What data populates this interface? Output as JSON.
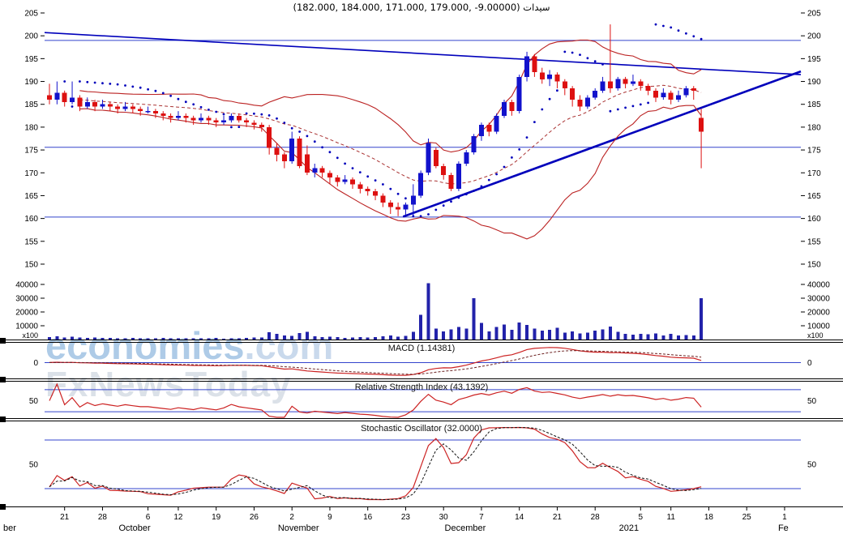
{
  "watermark": {
    "brand": "economies",
    "domain": ".com",
    "subtitle": "FxNewsToday"
  },
  "colors": {
    "up": "#1212cc",
    "down": "#dd1010",
    "band": "#bb2222",
    "band_mid": "#aa3333",
    "trend": "#0000bb",
    "level": "#3344cc",
    "volume": "#2222aa",
    "macd": "#cc2222",
    "signal": "#6b2020",
    "rsi": "#cc2222",
    "stoch_k": "#cc2222",
    "stoch_d": "#111111",
    "axis_text": "#000000",
    "separator": "#000000",
    "watermark_brand": "#aecbe7",
    "watermark_sub": "#dbe1e8"
  },
  "chart_data": {
    "type": "candlestick",
    "symbol": "سيدات",
    "title": "سيدات ‎(182.000, 184.000, 171.000, 179.000, -9.00000)",
    "last_ohlc": {
      "open": 182.0,
      "high": 184.0,
      "low": 171.0,
      "close": 179.0,
      "change": -9.0
    },
    "price_axis": {
      "ticks": [
        205,
        200,
        195,
        190,
        185,
        180,
        175,
        170,
        165,
        160,
        155,
        150
      ]
    },
    "volume_axis": {
      "ticks": [
        40000,
        30000,
        20000,
        10000
      ],
      "multiplier": "x100"
    },
    "levels": [
      199.0,
      175.6,
      160.3
    ],
    "trendlines": [
      {
        "name": "descending-resistance-trendline",
        "x1_frac": 0.0,
        "price1": 200.7,
        "x2_frac": 1.0,
        "price2": 191.5,
        "width": 1.6
      },
      {
        "name": "ascending-support-trendline",
        "x1_frac": 0.474,
        "price1": 160.4,
        "x2_frac": 1.0,
        "price2": 192.2,
        "width": 2.6
      }
    ],
    "indicator_panels": [
      {
        "name": "macd",
        "title": "MACD (1.14381)",
        "zero_label": "0"
      },
      {
        "name": "rsi",
        "title": "Relative Strength Index (43.1392)",
        "mid_label": "50",
        "lines": [
          70,
          30
        ]
      },
      {
        "name": "stoch",
        "title": "Stochastic Oscillator (32.0000)",
        "mid_label": "50",
        "lines": [
          80,
          20
        ]
      }
    ],
    "x_ticks": [
      {
        "i": 2,
        "label": "21"
      },
      {
        "i": 7,
        "label": "28"
      },
      {
        "i": 13,
        "label": "6"
      },
      {
        "i": 17,
        "label": "12"
      },
      {
        "i": 22,
        "label": "19"
      },
      {
        "i": 27,
        "label": "26"
      },
      {
        "i": 32,
        "label": "2"
      },
      {
        "i": 37,
        "label": "9"
      },
      {
        "i": 42,
        "label": "16"
      },
      {
        "i": 47,
        "label": "23"
      },
      {
        "i": 52,
        "label": "30"
      },
      {
        "i": 57,
        "label": "7"
      },
      {
        "i": 62,
        "label": "14"
      },
      {
        "i": 67,
        "label": "21"
      },
      {
        "i": 72,
        "label": "28"
      },
      {
        "i": 78,
        "label": "5"
      },
      {
        "i": 82,
        "label": "11"
      },
      {
        "i": 87,
        "label": "18"
      },
      {
        "i": 92,
        "label": "25"
      },
      {
        "i": 97,
        "label": "1"
      }
    ],
    "month_labels": [
      {
        "i": -5.7,
        "label": "ber"
      },
      {
        "i": 10,
        "label": "October"
      },
      {
        "i": 31,
        "label": "November"
      },
      {
        "i": 53,
        "label": "December"
      },
      {
        "i": 76,
        "label": "2021"
      },
      {
        "i": 97,
        "label": "Fe"
      }
    ],
    "candles": [
      [
        "2020-09-17",
        187.0,
        189.5,
        185.0,
        186.0,
        1800
      ],
      [
        "2020-09-20",
        186.0,
        190.0,
        185.0,
        187.5,
        2500
      ],
      [
        "2020-09-21",
        187.5,
        188.0,
        184.5,
        185.5,
        1600
      ],
      [
        "2020-09-22",
        185.5,
        190.0,
        185.0,
        186.5,
        2100
      ],
      [
        "2020-09-23",
        186.5,
        187.0,
        183.5,
        184.5,
        1400
      ],
      [
        "2020-09-24",
        184.5,
        186.5,
        184.0,
        185.5,
        1200
      ],
      [
        "2020-09-27",
        185.5,
        186.0,
        183.5,
        184.5,
        1500
      ],
      [
        "2020-09-28",
        184.5,
        186.0,
        184.0,
        185.0,
        1300
      ],
      [
        "2020-09-29",
        185.0,
        185.5,
        183.5,
        184.5,
        1100
      ],
      [
        "2020-09-30",
        184.5,
        185.0,
        183.0,
        184.0,
        1000
      ],
      [
        "2020-10-01",
        184.0,
        185.5,
        183.5,
        184.5,
        900
      ],
      [
        "2020-10-04",
        184.5,
        185.0,
        183.0,
        184.0,
        1100
      ],
      [
        "2020-10-05",
        184.0,
        184.5,
        182.5,
        183.5,
        1000
      ],
      [
        "2020-10-06",
        183.5,
        184.5,
        183.0,
        183.5,
        800
      ],
      [
        "2020-10-07",
        183.5,
        184.0,
        182.0,
        183.0,
        950
      ],
      [
        "2020-10-08",
        183.0,
        183.5,
        181.5,
        182.5,
        1200
      ],
      [
        "2020-10-11",
        182.5,
        183.0,
        181.0,
        182.0,
        1000
      ],
      [
        "2020-10-12",
        182.0,
        183.5,
        181.5,
        182.5,
        900
      ],
      [
        "2020-10-13",
        182.5,
        183.0,
        181.0,
        182.0,
        850
      ],
      [
        "2020-10-14",
        182.0,
        182.5,
        180.5,
        181.5,
        900
      ],
      [
        "2020-10-15",
        181.5,
        183.0,
        181.0,
        182.0,
        800
      ],
      [
        "2020-10-18",
        182.0,
        182.5,
        180.5,
        181.5,
        1000
      ],
      [
        "2020-10-19",
        181.5,
        182.0,
        180.0,
        181.0,
        1100
      ],
      [
        "2020-10-20",
        181.0,
        182.5,
        180.5,
        181.5,
        700
      ],
      [
        "2020-10-21",
        181.5,
        183.0,
        181.0,
        182.5,
        900
      ],
      [
        "2020-10-22",
        182.5,
        183.0,
        181.0,
        181.5,
        800
      ],
      [
        "2020-10-25",
        181.5,
        182.0,
        180.0,
        181.0,
        1200
      ],
      [
        "2020-10-26",
        181.0,
        181.5,
        179.5,
        180.5,
        1400
      ],
      [
        "2020-10-27",
        180.5,
        181.0,
        179.0,
        180.0,
        1600
      ],
      [
        "2020-10-28",
        180.0,
        180.5,
        174.0,
        175.5,
        5200
      ],
      [
        "2020-10-29",
        175.5,
        176.5,
        172.5,
        174.0,
        4100
      ],
      [
        "2020-11-01",
        174.0,
        174.5,
        171.0,
        172.5,
        3000
      ],
      [
        "2020-11-02",
        172.5,
        179.0,
        172.0,
        177.5,
        2600
      ],
      [
        "2020-11-03",
        177.5,
        178.0,
        171.0,
        171.5,
        4800
      ],
      [
        "2020-11-04",
        174.0,
        176.0,
        169.5,
        170.0,
        5600
      ],
      [
        "2020-11-05",
        170.0,
        172.0,
        169.0,
        171.0,
        2400
      ],
      [
        "2020-11-08",
        171.0,
        171.5,
        169.0,
        170.0,
        1800
      ],
      [
        "2020-11-09",
        170.0,
        170.5,
        167.5,
        169.0,
        2200
      ],
      [
        "2020-11-10",
        169.0,
        169.5,
        167.0,
        168.0,
        1900
      ],
      [
        "2020-11-11",
        168.0,
        169.5,
        167.5,
        168.5,
        1300
      ],
      [
        "2020-11-12",
        168.5,
        169.0,
        166.5,
        167.5,
        1500
      ],
      [
        "2020-11-15",
        167.5,
        168.0,
        165.5,
        166.5,
        1700
      ],
      [
        "2020-11-16",
        166.5,
        167.0,
        165.0,
        166.0,
        1600
      ],
      [
        "2020-11-17",
        166.0,
        166.5,
        164.0,
        165.0,
        1800
      ],
      [
        "2020-11-18",
        165.0,
        165.5,
        162.5,
        163.5,
        2500
      ],
      [
        "2020-11-19",
        163.5,
        164.0,
        161.0,
        162.5,
        2800
      ],
      [
        "2020-11-22",
        162.5,
        163.5,
        160.5,
        162.0,
        2000
      ],
      [
        "2020-11-23",
        162.0,
        163.5,
        160.8,
        163.0,
        2600
      ],
      [
        "2020-11-24",
        163.0,
        167.5,
        160.5,
        165.0,
        5500
      ],
      [
        "2020-11-25",
        165.0,
        170.5,
        164.5,
        170.0,
        18000
      ],
      [
        "2020-11-26",
        170.0,
        177.5,
        169.5,
        176.5,
        41000
      ],
      [
        "2020-11-29",
        175.0,
        175.5,
        171.0,
        171.5,
        8000
      ],
      [
        "2020-11-30",
        171.5,
        172.0,
        168.5,
        169.5,
        6000
      ],
      [
        "2020-12-01",
        169.5,
        170.0,
        166.0,
        166.5,
        7500
      ],
      [
        "2020-12-02",
        166.5,
        172.5,
        166.0,
        172.0,
        9000
      ],
      [
        "2020-12-03",
        172.0,
        175.0,
        171.5,
        174.5,
        8000
      ],
      [
        "2020-12-06",
        174.5,
        178.5,
        174.0,
        178.0,
        30000
      ],
      [
        "2020-12-07",
        178.0,
        181.0,
        177.0,
        180.5,
        12000
      ],
      [
        "2020-12-08",
        180.5,
        181.0,
        178.0,
        179.0,
        6000
      ],
      [
        "2020-12-09",
        179.0,
        183.0,
        178.5,
        182.5,
        9000
      ],
      [
        "2020-12-10",
        182.5,
        186.0,
        182.0,
        185.5,
        11000
      ],
      [
        "2020-12-13",
        185.5,
        186.0,
        182.5,
        183.5,
        7000
      ],
      [
        "2020-12-14",
        183.5,
        191.5,
        183.0,
        191.0,
        12500
      ],
      [
        "2020-12-15",
        191.0,
        196.5,
        190.0,
        195.5,
        10500
      ],
      [
        "2020-12-16",
        195.5,
        196.0,
        191.0,
        192.0,
        8000
      ],
      [
        "2020-12-17",
        192.0,
        193.0,
        189.5,
        190.5,
        6500
      ],
      [
        "2020-12-20",
        190.5,
        192.5,
        189.0,
        191.5,
        7000
      ],
      [
        "2020-12-21",
        191.5,
        192.0,
        188.5,
        190.0,
        8500
      ],
      [
        "2020-12-22",
        190.0,
        190.5,
        187.0,
        188.5,
        5000
      ],
      [
        "2020-12-23",
        188.5,
        189.0,
        184.5,
        186.0,
        6000
      ],
      [
        "2020-12-24",
        186.0,
        187.0,
        183.5,
        184.5,
        4500
      ],
      [
        "2020-12-27",
        184.5,
        187.0,
        184.0,
        186.5,
        5000
      ],
      [
        "2020-12-28",
        186.5,
        188.5,
        186.0,
        188.0,
        6500
      ],
      [
        "2020-12-29",
        188.0,
        191.0,
        187.5,
        190.0,
        7500
      ],
      [
        "2020-12-30",
        190.0,
        202.5,
        187.5,
        188.5,
        9500
      ],
      [
        "2020-12-31",
        188.5,
        191.0,
        188.0,
        190.5,
        5500
      ],
      [
        "2021-01-03",
        190.5,
        191.0,
        188.5,
        189.5,
        4000
      ],
      [
        "2021-01-04",
        189.5,
        191.5,
        189.0,
        190.0,
        3500
      ],
      [
        "2021-01-05",
        190.0,
        190.5,
        188.0,
        189.0,
        4200
      ],
      [
        "2021-01-06",
        189.0,
        189.5,
        187.0,
        188.0,
        3800
      ],
      [
        "2021-01-07",
        188.0,
        188.5,
        185.5,
        186.5,
        4500
      ],
      [
        "2021-01-10",
        186.5,
        188.5,
        186.0,
        187.5,
        3000
      ],
      [
        "2021-01-11",
        187.5,
        188.0,
        185.0,
        186.0,
        4000
      ],
      [
        "2021-01-12",
        186.0,
        188.0,
        185.5,
        187.0,
        2800
      ],
      [
        "2021-01-13",
        187.0,
        189.0,
        186.5,
        188.5,
        3200
      ],
      [
        "2021-01-14",
        188.5,
        189.0,
        186.0,
        188.0,
        3000
      ],
      [
        "2021-01-17",
        182.0,
        184.0,
        171.0,
        179.0,
        30000
      ]
    ]
  }
}
